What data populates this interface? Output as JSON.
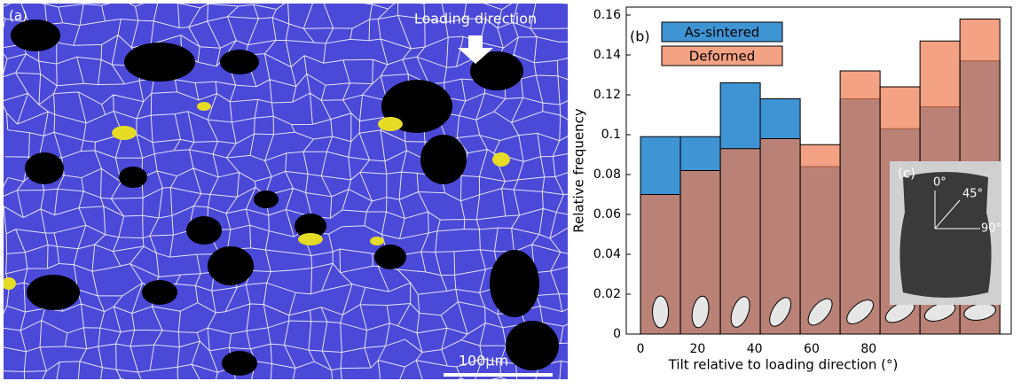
{
  "panel_a": {
    "label": "(a)",
    "annotation": "Loading direction",
    "scale_bar": "100μm"
  },
  "chart_data": {
    "type": "histogram",
    "panel_label": "(b)",
    "xlabel": "Tilt relative to loading direction (°)",
    "ylabel": "Relative frequency",
    "bins": [
      0,
      14,
      28,
      42,
      56,
      70,
      84,
      98,
      112,
      126
    ],
    "series": [
      {
        "name": "As-sintered",
        "color": "#3f94d4",
        "values": [
          0.099,
          0.099,
          0.126,
          0.118,
          0.084,
          0.118,
          0.103,
          0.114,
          0.137
        ]
      },
      {
        "name": "Deformed",
        "color": "#f07a50",
        "values": [
          0.07,
          0.082,
          0.093,
          0.098,
          0.095,
          0.132,
          0.124,
          0.147,
          0.158
        ]
      }
    ],
    "xlim": [
      -5,
      130
    ],
    "ylim": [
      0,
      0.164
    ],
    "xticks": [
      0,
      20,
      40,
      60,
      80
    ],
    "yticks": [
      0,
      0.02,
      0.04,
      0.06,
      0.08,
      0.1,
      0.12,
      0.14,
      0.16
    ]
  },
  "inset": {
    "label": "(c)",
    "angles": [
      "0°",
      "45°",
      "90°"
    ]
  }
}
